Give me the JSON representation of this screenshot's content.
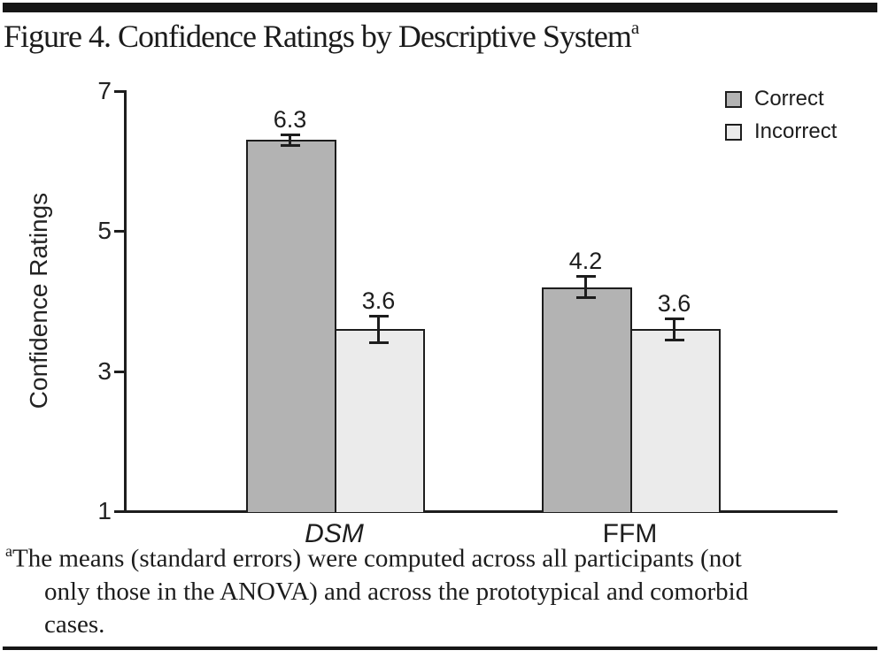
{
  "header": {
    "title": "Figure 4. Confidence Ratings by Descriptive System",
    "title_superscript": "a"
  },
  "chart_data": {
    "type": "bar",
    "title": "Confidence Ratings by Descriptive System",
    "categories": [
      "DSM",
      "FFM"
    ],
    "category_label_styles": [
      "italic",
      "normal"
    ],
    "series": [
      {
        "name": "Correct",
        "values": [
          6.3,
          4.2
        ],
        "std_errors": [
          0.1,
          0.17
        ],
        "color": "#b3b3b3"
      },
      {
        "name": "Incorrect",
        "values": [
          3.6,
          3.6
        ],
        "std_errors": [
          0.21,
          0.17
        ],
        "color": "#ebebeb"
      }
    ],
    "value_labels": [
      [
        "6.3",
        "4.2"
      ],
      [
        "3.6",
        "3.6"
      ]
    ],
    "xlabel": "",
    "ylabel": "Confidence Ratings",
    "ylim": [
      1,
      7
    ],
    "yticks": [
      7,
      5,
      3,
      1
    ],
    "grid": false,
    "legend_position": "top-right",
    "bar_outline_color": "#1d1d1d"
  },
  "footnote": {
    "superscript": "a",
    "lines": [
      "The means (standard errors) were computed across all participants (not",
      "only those in the ANOVA) and across the prototypical and comorbid",
      "cases."
    ]
  }
}
